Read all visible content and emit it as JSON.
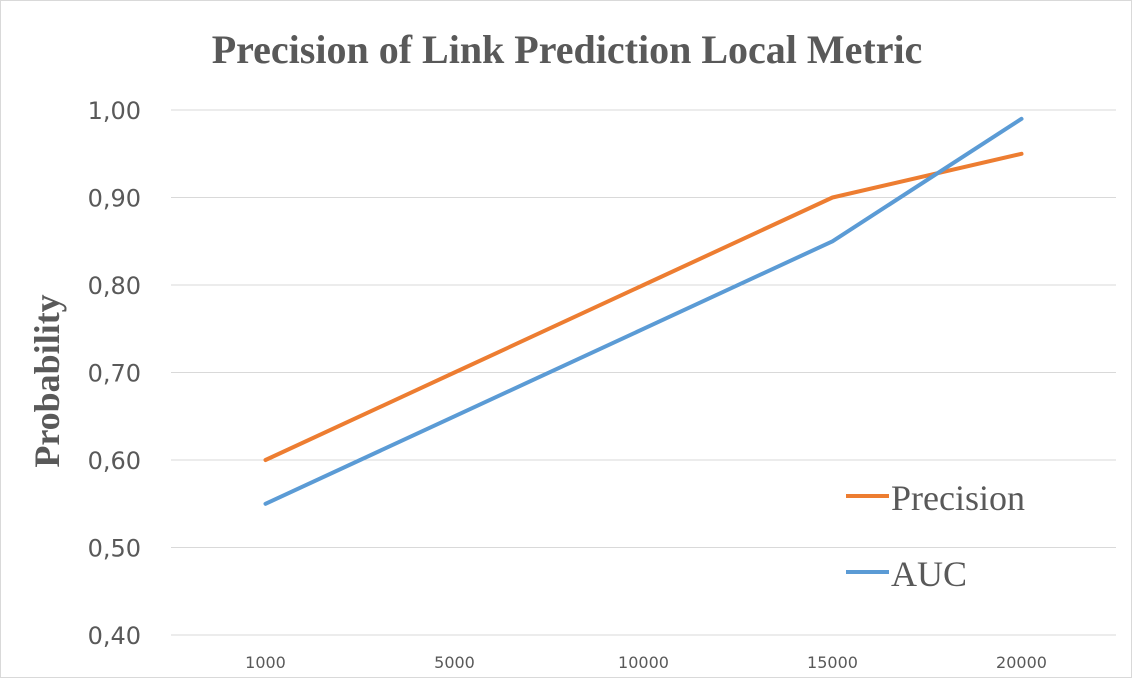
{
  "chart_data": {
    "type": "line",
    "title": "Precision of Link Prediction Local Metric",
    "xlabel": "",
    "ylabel": "Probability",
    "categories": [
      "1000",
      "5000",
      "10000",
      "15000",
      "20000"
    ],
    "series": [
      {
        "name": "Precision",
        "color": "#ed7d31",
        "values": [
          0.6,
          0.7,
          0.8,
          0.9,
          0.95
        ]
      },
      {
        "name": "AUC",
        "color": "#5b9bd5",
        "values": [
          0.55,
          0.65,
          0.75,
          0.85,
          0.99
        ]
      }
    ],
    "ylim": [
      0.4,
      1.0
    ],
    "yticks": [
      "0,40",
      "0,50",
      "0,60",
      "0,70",
      "0,80",
      "0,90",
      "1,00"
    ],
    "grid": true,
    "legend": "bottom-right"
  }
}
